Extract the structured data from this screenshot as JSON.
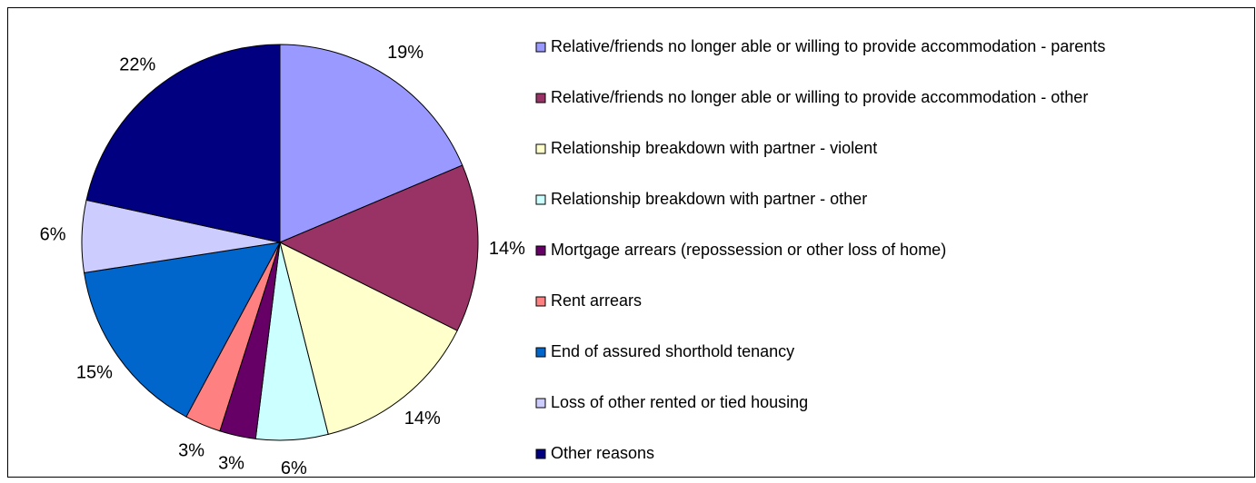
{
  "chart_data": {
    "type": "pie",
    "categories": [
      "Relative/friends no longer able or willing to provide accommodation - parents",
      "Relative/friends no longer able or willing to provide accommodation - other",
      "Relationship breakdown with partner - violent",
      "Relationship breakdown with partner - other",
      "Mortgage arrears (repossession or other loss of home)",
      "Rent arrears",
      "End of assured shorthold tenancy",
      "Loss of other rented or tied housing",
      "Other reasons"
    ],
    "values": [
      19,
      14,
      14,
      6,
      3,
      3,
      15,
      6,
      22
    ],
    "value_labels": [
      "19%",
      "14%",
      "14%",
      "6%",
      "3%",
      "3%",
      "15%",
      "6%",
      "22%"
    ],
    "colors": [
      "#9999ff",
      "#993366",
      "#ffffcc",
      "#ccffff",
      "#660066",
      "#ff8080",
      "#0066cc",
      "#ccccff",
      "#000080"
    ],
    "legend": "right"
  }
}
